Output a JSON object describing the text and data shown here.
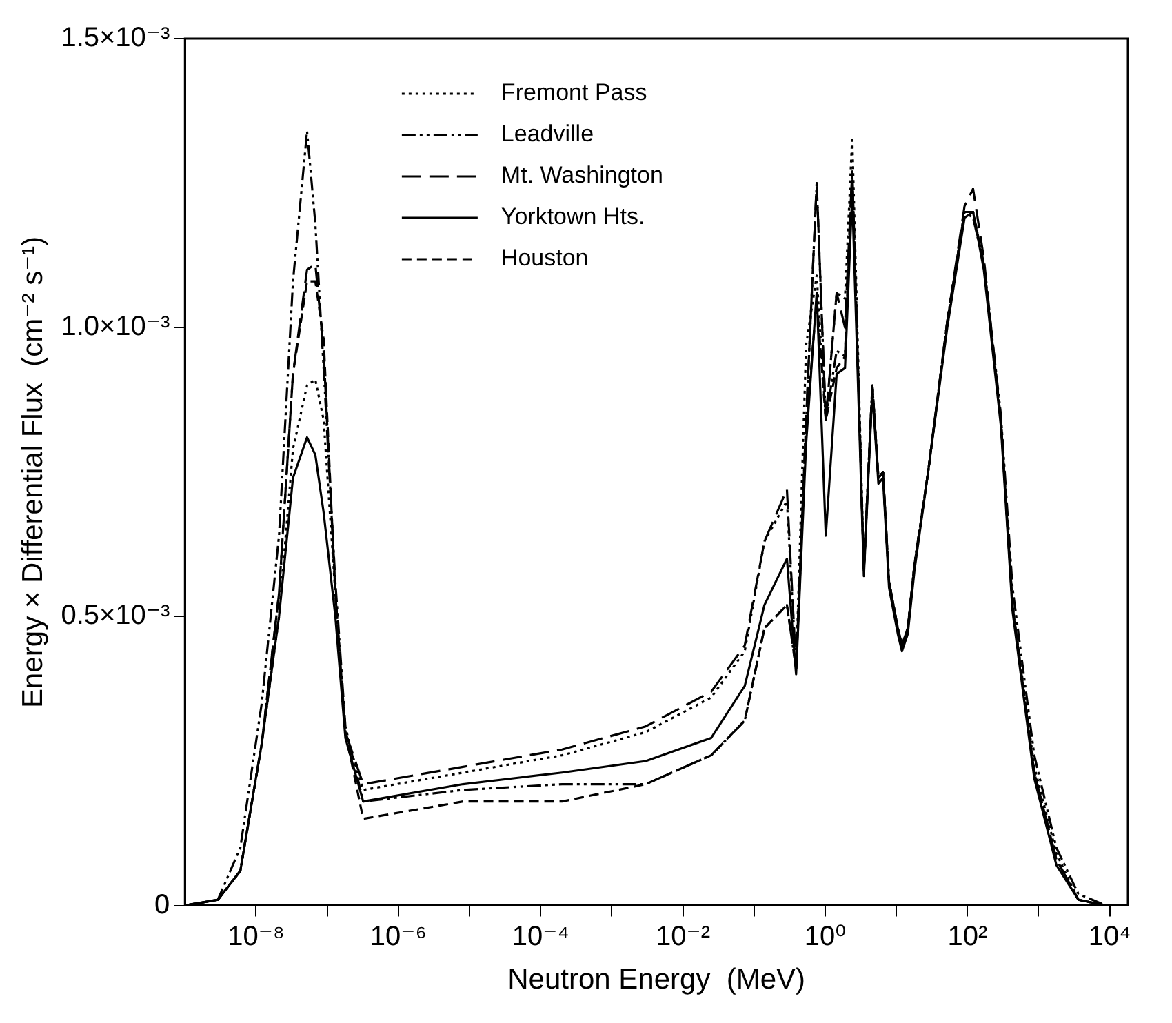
{
  "chart_data": {
    "type": "line",
    "xlabel": "Neutron Energy  (MeV)",
    "ylabel": "Energy × Differential Flux  (cm⁻² s⁻¹)",
    "log": "x",
    "grid": false,
    "legend": "top left",
    "xlim": [
      1e-09,
      18000.0
    ],
    "xticks": [
      {
        "value": 1e-08,
        "label": "10⁻⁸"
      },
      {
        "value": 1e-07,
        "label": null
      },
      {
        "value": 1e-06,
        "label": "10⁻⁶"
      },
      {
        "value": 1e-05,
        "label": null
      },
      {
        "value": 0.0001,
        "label": "10⁻⁴"
      },
      {
        "value": 0.001,
        "label": null
      },
      {
        "value": 0.01,
        "label": "10⁻²"
      },
      {
        "value": 0.1,
        "label": null
      },
      {
        "value": 1,
        "label": "10⁰"
      },
      {
        "value": 10,
        "label": null
      },
      {
        "value": 100,
        "label": "10²"
      },
      {
        "value": 1000,
        "label": null
      },
      {
        "value": 10000.0,
        "label": "10⁴"
      }
    ],
    "ylim": [
      0,
      0.0015
    ],
    "yticks": [
      0,
      {
        "value": 0.0005,
        "label": "0.5×10⁻³"
      },
      {
        "value": 0.001,
        "label": "1.0×10⁻³"
      },
      {
        "value": 0.0015,
        "label": "1.5×10⁻³"
      }
    ],
    "x": [
      1e-09,
      2.9e-09,
      6e-09,
      1.2e-08,
      2.1e-08,
      3.3e-08,
      5.2e-08,
      6.8e-08,
      8.9e-08,
      1.3e-07,
      1.8e-07,
      3.2e-07,
      8.1e-06,
      0.0002,
      0.003,
      0.025,
      0.074,
      0.14,
      0.29,
      0.39,
      0.54,
      0.76,
      1.02,
      1.45,
      1.9,
      2.4,
      3.5,
      4.6,
      5.6,
      6.5,
      7.9,
      10.5,
      12,
      14.5,
      18,
      28,
      52,
      91,
      120,
      170,
      295,
      430,
      870,
      1780,
      3630,
      8900
    ],
    "series": [
      {
        "name": "Fremont Pass",
        "color": "#000000",
        "line_style": "dotted",
        "values": [
          0,
          1e-05,
          6e-05,
          0.00028,
          0.0005,
          0.00079,
          0.0009,
          0.00091,
          0.00084,
          0.00054,
          0.0003,
          0.0002,
          0.00023,
          0.00026,
          0.0003,
          0.00036,
          0.00044,
          0.00063,
          0.0007,
          0.00041,
          0.00097,
          0.00109,
          0.00084,
          0.00106,
          0.00105,
          0.00133,
          0.00058,
          0.0009,
          0.00074,
          0.00075,
          0.00056,
          0.00048,
          0.00045,
          0.00048,
          0.00059,
          0.00075,
          0.00101,
          0.0012,
          0.0012,
          0.00111,
          0.00084,
          0.00052,
          0.00024,
          9e-05,
          1e-05,
          0
        ]
      },
      {
        "name": "Leadville",
        "color": "#000000",
        "line_style": "dashed",
        "values": [
          0,
          1e-05,
          0.0001,
          0.00035,
          0.00064,
          0.00108,
          0.00134,
          0.00118,
          0.00093,
          0.00056,
          0.00031,
          0.00018,
          0.0002,
          0.00021,
          0.00021,
          0.00026,
          0.00032,
          0.00048,
          0.00052,
          0.00041,
          0.00084,
          0.00125,
          0.00084,
          0.00096,
          0.00095,
          0.00127,
          0.00058,
          0.0009,
          0.00074,
          0.00075,
          0.00056,
          0.00048,
          0.00045,
          0.00048,
          0.00059,
          0.00075,
          0.00101,
          0.0012,
          0.00119,
          0.00111,
          0.00085,
          0.00055,
          0.00026,
          0.0001,
          2e-05,
          0
        ]
      },
      {
        "name": "Mt. Washington",
        "color": "#000000",
        "line_style": "dashed",
        "values": [
          0,
          1e-05,
          6e-05,
          0.00028,
          0.00054,
          0.00092,
          0.0011,
          0.00111,
          0.00096,
          0.00054,
          0.0003,
          0.00021,
          0.00024,
          0.00027,
          0.00031,
          0.00037,
          0.00045,
          0.00063,
          0.00072,
          0.00041,
          0.00084,
          0.00125,
          0.00084,
          0.00106,
          0.001,
          0.00127,
          0.00058,
          0.0009,
          0.00074,
          0.00075,
          0.00056,
          0.00048,
          0.00045,
          0.00048,
          0.00059,
          0.00075,
          0.00101,
          0.00121,
          0.00124,
          0.00112,
          0.00084,
          0.00052,
          0.00023,
          8e-05,
          1e-05,
          0
        ]
      },
      {
        "name": "Yorktown Hts.",
        "color": "#000000",
        "line_style": "solid",
        "values": [
          0,
          1e-05,
          6e-05,
          0.00028,
          0.0005,
          0.00074,
          0.00081,
          0.00078,
          0.00068,
          0.0005,
          0.00029,
          0.00018,
          0.00021,
          0.00023,
          0.00025,
          0.00029,
          0.00038,
          0.00052,
          0.0006,
          0.0004,
          0.0008,
          0.00106,
          0.00064,
          0.00092,
          0.00093,
          0.00123,
          0.00057,
          0.00089,
          0.00073,
          0.00074,
          0.00055,
          0.00047,
          0.00044,
          0.00047,
          0.00058,
          0.00075,
          0.001,
          0.00119,
          0.0012,
          0.0011,
          0.00083,
          0.00051,
          0.00022,
          7e-05,
          1e-05,
          0
        ]
      },
      {
        "name": "Houston",
        "color": "#000000",
        "line_style": "dashed",
        "values": [
          0,
          1e-05,
          6e-05,
          0.00028,
          0.00054,
          0.00092,
          0.00108,
          0.00108,
          0.00098,
          0.00054,
          0.0003,
          0.00015,
          0.00018,
          0.00018,
          0.00021,
          0.00026,
          0.00032,
          0.00048,
          0.00052,
          0.00041,
          0.00082,
          0.00105,
          0.00084,
          0.00093,
          0.00095,
          0.00127,
          0.00058,
          0.0009,
          0.00074,
          0.00075,
          0.00056,
          0.00048,
          0.00045,
          0.00048,
          0.00059,
          0.00075,
          0.00101,
          0.0012,
          0.0012,
          0.00111,
          0.00084,
          0.00052,
          0.00023,
          8e-05,
          1e-05,
          0
        ]
      }
    ]
  }
}
